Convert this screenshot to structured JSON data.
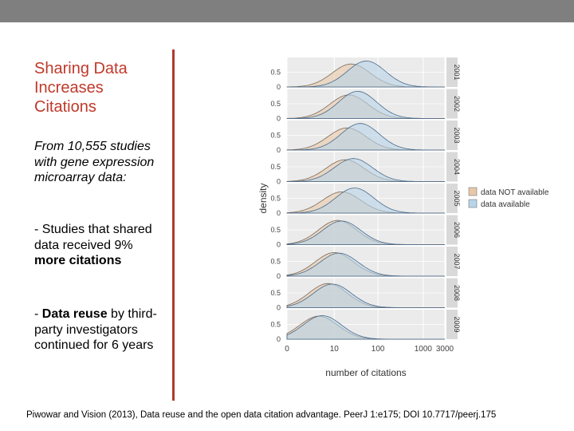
{
  "slide": {
    "title": "Sharing Data Increases Citations",
    "intro": "From 10,555 studies with gene expression microarray data:",
    "point1_prefix": "- Studies that shared data received 9% ",
    "point1_bold": "more citations",
    "point2_prefix": "- ",
    "point2_bold": "Data reuse",
    "point2_suffix": " by third-party investigators continued for 6 years",
    "citation": "Piwowar and Vision (2013), Data reuse and the open data citation advantage. PeerJ 1:e175; DOI 10.7717/peerj.175"
  },
  "colors": {
    "topbar": "#7f7f7f",
    "title": "#c0392b",
    "divider": "#b03a2e",
    "not_available": "#e8c8a8",
    "available": "#b8d4e8",
    "panel_bg": "#ebebeb"
  },
  "chart_data": {
    "type": "area",
    "title": "",
    "xlabel": "number of citations",
    "ylabel": "density",
    "x_scale": "log",
    "x_ticks": [
      "0",
      "10",
      "100",
      "1000",
      "3000"
    ],
    "y_ticks": [
      "0",
      "0.5"
    ],
    "ylim": [
      0,
      1
    ],
    "legend": {
      "placement": "right",
      "entries": [
        {
          "label": "data NOT available",
          "color": "#e8c8a8"
        },
        {
          "label": "data available",
          "color": "#b8d4e8"
        }
      ]
    },
    "panels": [
      {
        "year": "2001",
        "not_available": {
          "peak": 25,
          "height": 0.78
        },
        "available": {
          "peak": 55,
          "height": 0.88
        }
      },
      {
        "year": "2002",
        "not_available": {
          "peak": 22,
          "height": 0.8
        },
        "available": {
          "peak": 35,
          "height": 0.92
        }
      },
      {
        "year": "2003",
        "not_available": {
          "peak": 20,
          "height": 0.75
        },
        "available": {
          "peak": 40,
          "height": 0.9
        }
      },
      {
        "year": "2004",
        "not_available": {
          "peak": 18,
          "height": 0.74
        },
        "available": {
          "peak": 28,
          "height": 0.78
        }
      },
      {
        "year": "2005",
        "not_available": {
          "peak": 15,
          "height": 0.72
        },
        "available": {
          "peak": 30,
          "height": 0.85
        }
      },
      {
        "year": "2006",
        "not_available": {
          "peak": 12,
          "height": 0.82
        },
        "available": {
          "peak": 15,
          "height": 0.8
        }
      },
      {
        "year": "2007",
        "not_available": {
          "peak": 10,
          "height": 0.8
        },
        "available": {
          "peak": 13,
          "height": 0.78
        }
      },
      {
        "year": "2008",
        "not_available": {
          "peak": 7,
          "height": 0.82
        },
        "available": {
          "peak": 9,
          "height": 0.8
        }
      },
      {
        "year": "2009",
        "not_available": {
          "peak": 4,
          "height": 0.78
        },
        "available": {
          "peak": 5,
          "height": 0.8
        }
      }
    ]
  }
}
